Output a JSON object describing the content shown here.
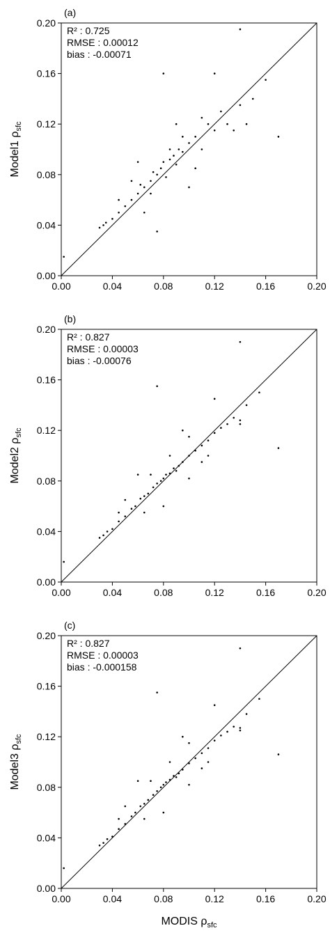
{
  "chart_data": [
    {
      "type": "scatter",
      "panel_label": "(a)",
      "annotations": [
        "R² : 0.725",
        "RMSE : 0.00012",
        "bias : -0.00071"
      ],
      "ylabel": {
        "text": "Model1 ρ",
        "sub": "sfc"
      },
      "color": "#000000",
      "xlim": [
        0,
        0.2
      ],
      "ylim": [
        0,
        0.2
      ],
      "xticks": [
        {
          "value": 0,
          "label": "0.00"
        },
        {
          "value": 0.04,
          "label": "0.04"
        },
        {
          "value": 0.08,
          "label": "0.08"
        },
        {
          "value": 0.12,
          "label": "0.12"
        },
        {
          "value": 0.16,
          "label": "0.16"
        },
        {
          "value": 0.2,
          "label": "0.20"
        }
      ],
      "yticks": [
        {
          "value": 0,
          "label": "0.00"
        },
        {
          "value": 0.04,
          "label": "0.04"
        },
        {
          "value": 0.08,
          "label": "0.08"
        },
        {
          "value": 0.12,
          "label": "0.12"
        },
        {
          "value": 0.16,
          "label": "0.16"
        },
        {
          "value": 0.2,
          "label": "0.20"
        }
      ],
      "x": [
        0.03,
        0.033,
        0.035,
        0.04,
        0.045,
        0.05,
        0.055,
        0.06,
        0.062,
        0.065,
        0.07,
        0.072,
        0.075,
        0.078,
        0.08,
        0.082,
        0.085,
        0.088,
        0.09,
        0.092,
        0.095,
        0.1,
        0.105,
        0.11,
        0.115,
        0.12,
        0.125,
        0.13,
        0.14,
        0.145,
        0.15,
        0.08,
        0.14,
        0.17,
        0.16,
        0.002,
        0.06,
        0.1,
        0.075,
        0.12,
        0.055,
        0.09,
        0.065,
        0.105,
        0.085,
        0.07,
        0.095,
        0.11,
        0.135,
        0.045
      ],
      "values": [
        0.038,
        0.04,
        0.042,
        0.045,
        0.05,
        0.055,
        0.06,
        0.065,
        0.072,
        0.07,
        0.075,
        0.082,
        0.08,
        0.085,
        0.09,
        0.078,
        0.092,
        0.095,
        0.088,
        0.1,
        0.098,
        0.105,
        0.11,
        0.1,
        0.12,
        0.115,
        0.13,
        0.12,
        0.135,
        0.12,
        0.14,
        0.16,
        0.195,
        0.11,
        0.155,
        0.015,
        0.09,
        0.07,
        0.035,
        0.16,
        0.075,
        0.12,
        0.05,
        0.085,
        0.1,
        0.065,
        0.11,
        0.125,
        0.115,
        0.06
      ]
    },
    {
      "type": "scatter",
      "panel_label": "(b)",
      "annotations": [
        "R² : 0.827",
        "RMSE : 0.00003",
        "bias : -0.00076"
      ],
      "ylabel": {
        "text": "Model2 ρ",
        "sub": "sfc"
      },
      "color": "#000000",
      "xlim": [
        0,
        0.2
      ],
      "ylim": [
        0,
        0.2
      ],
      "xticks": [
        {
          "value": 0,
          "label": "0.00"
        },
        {
          "value": 0.04,
          "label": "0.04"
        },
        {
          "value": 0.08,
          "label": "0.08"
        },
        {
          "value": 0.12,
          "label": "0.12"
        },
        {
          "value": 0.16,
          "label": "0.16"
        },
        {
          "value": 0.2,
          "label": "0.20"
        }
      ],
      "yticks": [
        {
          "value": 0,
          "label": "0.00"
        },
        {
          "value": 0.04,
          "label": "0.04"
        },
        {
          "value": 0.08,
          "label": "0.08"
        },
        {
          "value": 0.12,
          "label": "0.12"
        },
        {
          "value": 0.16,
          "label": "0.16"
        },
        {
          "value": 0.2,
          "label": "0.20"
        }
      ],
      "x": [
        0.03,
        0.033,
        0.036,
        0.04,
        0.045,
        0.05,
        0.055,
        0.058,
        0.062,
        0.065,
        0.068,
        0.072,
        0.075,
        0.078,
        0.08,
        0.082,
        0.085,
        0.088,
        0.09,
        0.092,
        0.095,
        0.1,
        0.105,
        0.11,
        0.115,
        0.12,
        0.125,
        0.13,
        0.135,
        0.14,
        0.145,
        0.075,
        0.14,
        0.17,
        0.155,
        0.002,
        0.06,
        0.1,
        0.08,
        0.12,
        0.05,
        0.095,
        0.065,
        0.11,
        0.085,
        0.07,
        0.1,
        0.115,
        0.14,
        0.045
      ],
      "values": [
        0.035,
        0.037,
        0.04,
        0.042,
        0.048,
        0.052,
        0.058,
        0.06,
        0.066,
        0.068,
        0.07,
        0.075,
        0.078,
        0.08,
        0.082,
        0.085,
        0.086,
        0.09,
        0.088,
        0.092,
        0.095,
        0.1,
        0.104,
        0.108,
        0.112,
        0.118,
        0.122,
        0.125,
        0.13,
        0.128,
        0.14,
        0.155,
        0.19,
        0.106,
        0.15,
        0.016,
        0.085,
        0.082,
        0.06,
        0.145,
        0.065,
        0.12,
        0.055,
        0.095,
        0.1,
        0.085,
        0.115,
        0.1,
        0.125,
        0.055
      ]
    },
    {
      "type": "scatter",
      "panel_label": "(c)",
      "annotations": [
        "R² : 0.827",
        "RMSE : 0.00003",
        "bias : -0.000158"
      ],
      "ylabel": {
        "text": "Model3 ρ",
        "sub": "sfc"
      },
      "xlabel": {
        "text": "MODIS ρ",
        "sub": "sfc"
      },
      "color": "#000000",
      "xlim": [
        0,
        0.2
      ],
      "ylim": [
        0,
        0.2
      ],
      "xticks": [
        {
          "value": 0,
          "label": "0.00"
        },
        {
          "value": 0.04,
          "label": "0.04"
        },
        {
          "value": 0.08,
          "label": "0.08"
        },
        {
          "value": 0.12,
          "label": "0.12"
        },
        {
          "value": 0.16,
          "label": "0.16"
        },
        {
          "value": 0.2,
          "label": "0.20"
        }
      ],
      "yticks": [
        {
          "value": 0,
          "label": "0.00"
        },
        {
          "value": 0.04,
          "label": "0.04"
        },
        {
          "value": 0.08,
          "label": "0.08"
        },
        {
          "value": 0.12,
          "label": "0.12"
        },
        {
          "value": 0.16,
          "label": "0.16"
        },
        {
          "value": 0.2,
          "label": "0.20"
        }
      ],
      "x": [
        0.03,
        0.033,
        0.036,
        0.04,
        0.045,
        0.05,
        0.055,
        0.058,
        0.062,
        0.065,
        0.068,
        0.072,
        0.075,
        0.078,
        0.08,
        0.082,
        0.085,
        0.088,
        0.09,
        0.092,
        0.095,
        0.1,
        0.105,
        0.11,
        0.115,
        0.12,
        0.125,
        0.13,
        0.135,
        0.14,
        0.145,
        0.075,
        0.14,
        0.17,
        0.155,
        0.002,
        0.06,
        0.1,
        0.08,
        0.12,
        0.05,
        0.095,
        0.065,
        0.11,
        0.085,
        0.07,
        0.1,
        0.115,
        0.14,
        0.045
      ],
      "values": [
        0.034,
        0.036,
        0.039,
        0.041,
        0.047,
        0.051,
        0.057,
        0.06,
        0.065,
        0.067,
        0.07,
        0.074,
        0.077,
        0.08,
        0.082,
        0.084,
        0.086,
        0.089,
        0.088,
        0.091,
        0.094,
        0.099,
        0.103,
        0.107,
        0.111,
        0.117,
        0.121,
        0.124,
        0.128,
        0.127,
        0.138,
        0.155,
        0.19,
        0.106,
        0.15,
        0.016,
        0.085,
        0.082,
        0.06,
        0.145,
        0.065,
        0.12,
        0.055,
        0.095,
        0.1,
        0.085,
        0.115,
        0.1,
        0.125,
        0.055
      ]
    }
  ]
}
